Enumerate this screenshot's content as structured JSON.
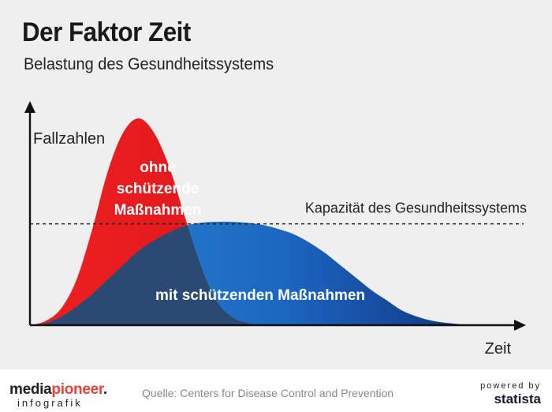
{
  "header": {
    "title": "Der Faktor Zeit",
    "subtitle": "Belastung des Gesundheitssystems"
  },
  "chart_data": {
    "type": "area",
    "title": "Der Faktor Zeit",
    "subtitle": "Belastung des Gesundheitssystems",
    "ylabel": "Fallzahlen",
    "xlabel": "Zeit",
    "x": [
      0,
      2,
      4,
      6,
      8,
      10,
      12,
      14,
      16,
      18,
      20,
      22,
      24,
      26,
      28,
      30,
      32,
      34,
      36,
      38,
      40,
      42,
      44,
      46,
      48,
      50,
      52,
      54,
      56,
      58,
      60
    ],
    "xlim": [
      0,
      62
    ],
    "ylim": [
      0,
      100
    ],
    "series": [
      {
        "name": "ohne schützende Maßnahmen",
        "label_lines": [
          "ohne",
          "schützende",
          "Maßnahmen"
        ],
        "color": "#e8141e",
        "values": [
          0,
          2,
          8,
          22,
          46,
          74,
          93,
          100,
          93,
          76,
          52,
          29,
          12,
          4,
          1,
          0,
          0,
          0,
          0,
          0,
          0,
          0,
          0,
          0,
          0,
          0,
          0,
          0,
          0,
          0,
          0
        ]
      },
      {
        "name": "mit schützenden Maßnahmen",
        "color": "#1c5fb8",
        "values": [
          0,
          1,
          4,
          9,
          15,
          22,
          29,
          36,
          41,
          45,
          48,
          49.5,
          50,
          50,
          49.5,
          48.5,
          46.5,
          44,
          40,
          35,
          29,
          23,
          17,
          12,
          7,
          4,
          2,
          1,
          0.3,
          0,
          0
        ]
      }
    ],
    "threshold": {
      "label": "Kapazität des Gesundheitssystems",
      "value": 49,
      "style": "dashed"
    },
    "grid": false,
    "legend": "none"
  },
  "footer": {
    "logo_main": "mediapioneer.",
    "logo_accent_part": "pioneer",
    "logo_sub": "infografik",
    "source": "Quelle: Centers for Disease Control and Prevention",
    "powered": "powered by",
    "statista": "statista"
  },
  "colors": {
    "background": "#efefef",
    "red": "#e8141e",
    "blue_dark": "#123a7a",
    "blue_light": "#2a8ad8",
    "overlap": "#2b4a73"
  }
}
